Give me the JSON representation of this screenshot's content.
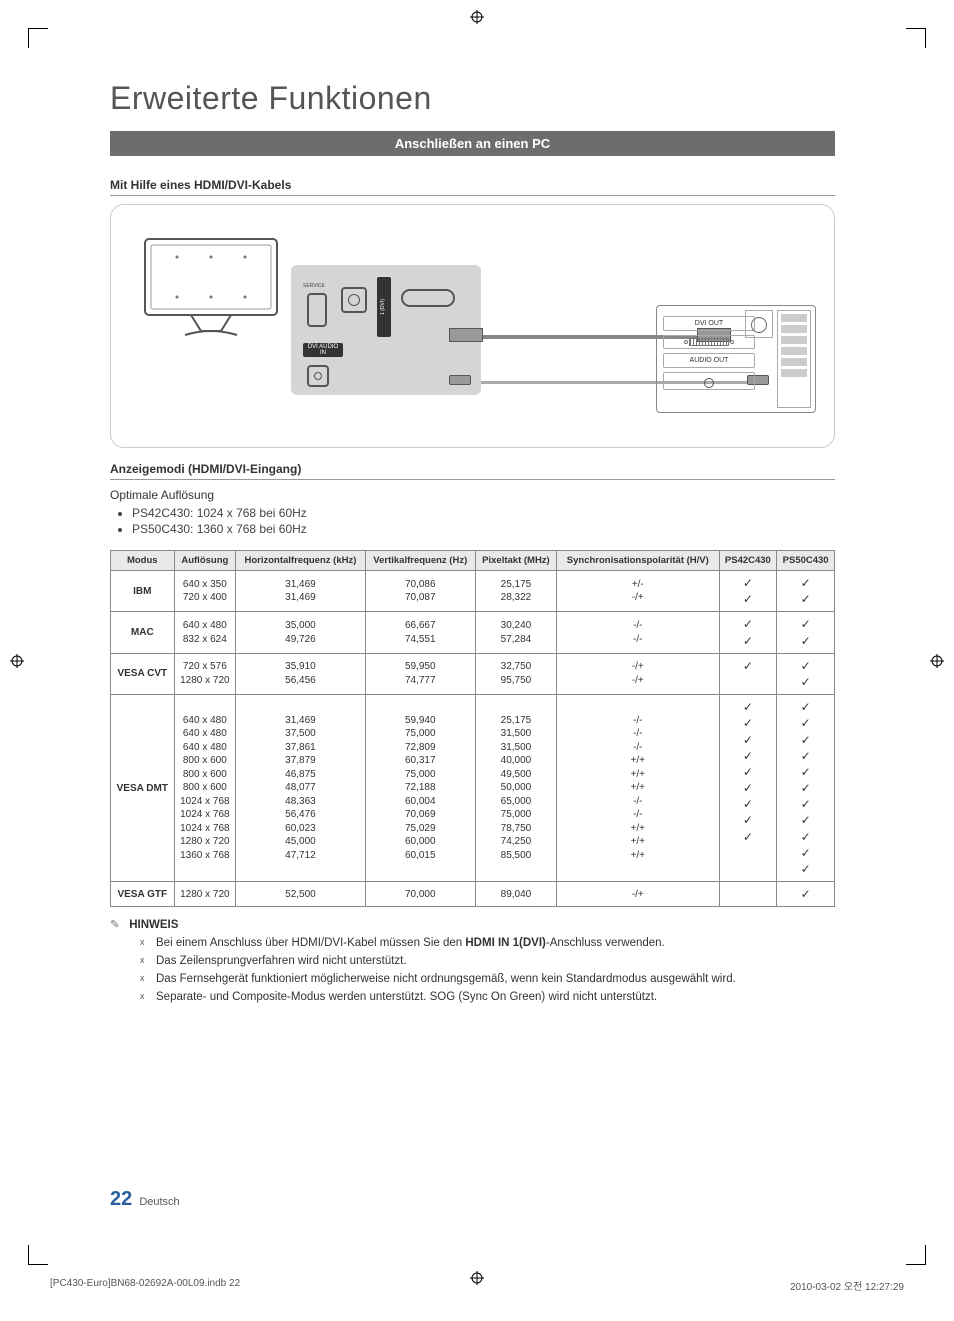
{
  "page": {
    "title": "Erweiterte Funktionen",
    "section_bar": "Anschließen an einen PC",
    "sub1": "Mit Hilfe eines HDMI/DVI-Kabels",
    "sub2": "Anzeigemodi (HDMI/DVI-Eingang)",
    "optimal_label": "Optimale Auflösung",
    "optimal_items": [
      "PS42C430: 1024 x 768 bei 60Hz",
      "PS50C430: 1360 x 768 bei 60Hz"
    ],
    "note_label": "HINWEIS",
    "notes": [
      "Bei einem Anschluss über HDMI/DVI-Kabel müssen Sie den HDMI IN 1(DVI)-Anschluss verwenden.",
      "Das Zeilensprungverfahren wird nicht unterstützt.",
      "Das Fernsehgerät funktioniert möglicherweise nicht ordnungsgemäß, wenn kein Standardmodus ausgewählt wird.",
      "Separate- und Composite-Modus werden unterstützt. SOG (Sync On Green) wird nicht unterstützt."
    ],
    "footer_lang": "Deutsch",
    "footer_page": "22",
    "print_left": "[PC430-Euro]BN68-02692A-00L09.indb   22",
    "print_right": "2010-03-02   오전 12:27:29"
  },
  "diagram": {
    "panel_service": "SERVICE",
    "panel_dvi_audio": "DVI AUDIO IN",
    "pc_dvi_out": "DVI OUT",
    "pc_audio_out": "AUDIO OUT"
  },
  "table": {
    "headers": [
      "Modus",
      "Auflösung",
      "Horizontalfrequenz (kHz)",
      "Vertikalfrequenz (Hz)",
      "Pixeltakt (MHz)",
      "Synchronisationspolarität (H/V)",
      "PS42C430",
      "PS50C430"
    ],
    "groups": [
      {
        "mode": "IBM",
        "rows": [
          {
            "res": "640 x 350",
            "hf": "31,469",
            "vf": "70,086",
            "px": "25,175",
            "pol": "+/-",
            "p42": "✓",
            "p50": "✓"
          },
          {
            "res": "720 x 400",
            "hf": "31,469",
            "vf": "70,087",
            "px": "28,322",
            "pol": "-/+",
            "p42": "✓",
            "p50": "✓"
          }
        ]
      },
      {
        "mode": "MAC",
        "rows": [
          {
            "res": "640 x 480",
            "hf": "35,000",
            "vf": "66,667",
            "px": "30,240",
            "pol": "-/-",
            "p42": "✓",
            "p50": "✓"
          },
          {
            "res": "832 x 624",
            "hf": "49,726",
            "vf": "74,551",
            "px": "57,284",
            "pol": "-/-",
            "p42": "✓",
            "p50": "✓"
          }
        ]
      },
      {
        "mode": "VESA CVT",
        "rows": [
          {
            "res": "720 x 576",
            "hf": "35,910",
            "vf": "59,950",
            "px": "32,750",
            "pol": "-/+",
            "p42": "✓",
            "p50": "✓"
          },
          {
            "res": "1280 x 720",
            "hf": "56,456",
            "vf": "74,777",
            "px": "95,750",
            "pol": "-/+",
            "p42": "",
            "p50": "✓"
          }
        ]
      },
      {
        "mode": "VESA DMT",
        "rows": [
          {
            "res": "640 x 480",
            "hf": "31,469",
            "vf": "59,940",
            "px": "25,175",
            "pol": "-/-",
            "p42": "✓",
            "p50": "✓"
          },
          {
            "res": "640 x 480",
            "hf": "37,500",
            "vf": "75,000",
            "px": "31,500",
            "pol": "-/-",
            "p42": "✓",
            "p50": "✓"
          },
          {
            "res": "640 x 480",
            "hf": "37,861",
            "vf": "72,809",
            "px": "31,500",
            "pol": "-/-",
            "p42": "✓",
            "p50": "✓"
          },
          {
            "res": "800 x 600",
            "hf": "37,879",
            "vf": "60,317",
            "px": "40,000",
            "pol": "+/+",
            "p42": "✓",
            "p50": "✓"
          },
          {
            "res": "800 x 600",
            "hf": "46,875",
            "vf": "75,000",
            "px": "49,500",
            "pol": "+/+",
            "p42": "✓",
            "p50": "✓"
          },
          {
            "res": "800 x 600",
            "hf": "48,077",
            "vf": "72,188",
            "px": "50,000",
            "pol": "+/+",
            "p42": "✓",
            "p50": "✓"
          },
          {
            "res": "1024 x 768",
            "hf": "48,363",
            "vf": "60,004",
            "px": "65,000",
            "pol": "-/-",
            "p42": "✓",
            "p50": "✓"
          },
          {
            "res": "1024 x 768",
            "hf": "56,476",
            "vf": "70,069",
            "px": "75,000",
            "pol": "-/-",
            "p42": "✓",
            "p50": "✓"
          },
          {
            "res": "1024 x 768",
            "hf": "60,023",
            "vf": "75,029",
            "px": "78,750",
            "pol": "+/+",
            "p42": "✓",
            "p50": "✓"
          },
          {
            "res": "1280 x 720",
            "hf": "45,000",
            "vf": "60,000",
            "px": "74,250",
            "pol": "+/+",
            "p42": "",
            "p50": "✓"
          },
          {
            "res": "1360 x 768",
            "hf": "47,712",
            "vf": "60,015",
            "px": "85,500",
            "pol": "+/+",
            "p42": "",
            "p50": "✓"
          }
        ]
      },
      {
        "mode": "VESA GTF",
        "rows": [
          {
            "res": "1280 x 720",
            "hf": "52,500",
            "vf": "70,000",
            "px": "89,040",
            "pol": "-/+",
            "p42": "",
            "p50": "✓"
          }
        ]
      }
    ]
  },
  "style": {
    "colors": {
      "bar_bg": "#6d6d6d",
      "bar_text": "#ffffff",
      "page_num": "#2a5f9e",
      "border": "#888888",
      "th_bg": "#e9e9e9"
    }
  }
}
